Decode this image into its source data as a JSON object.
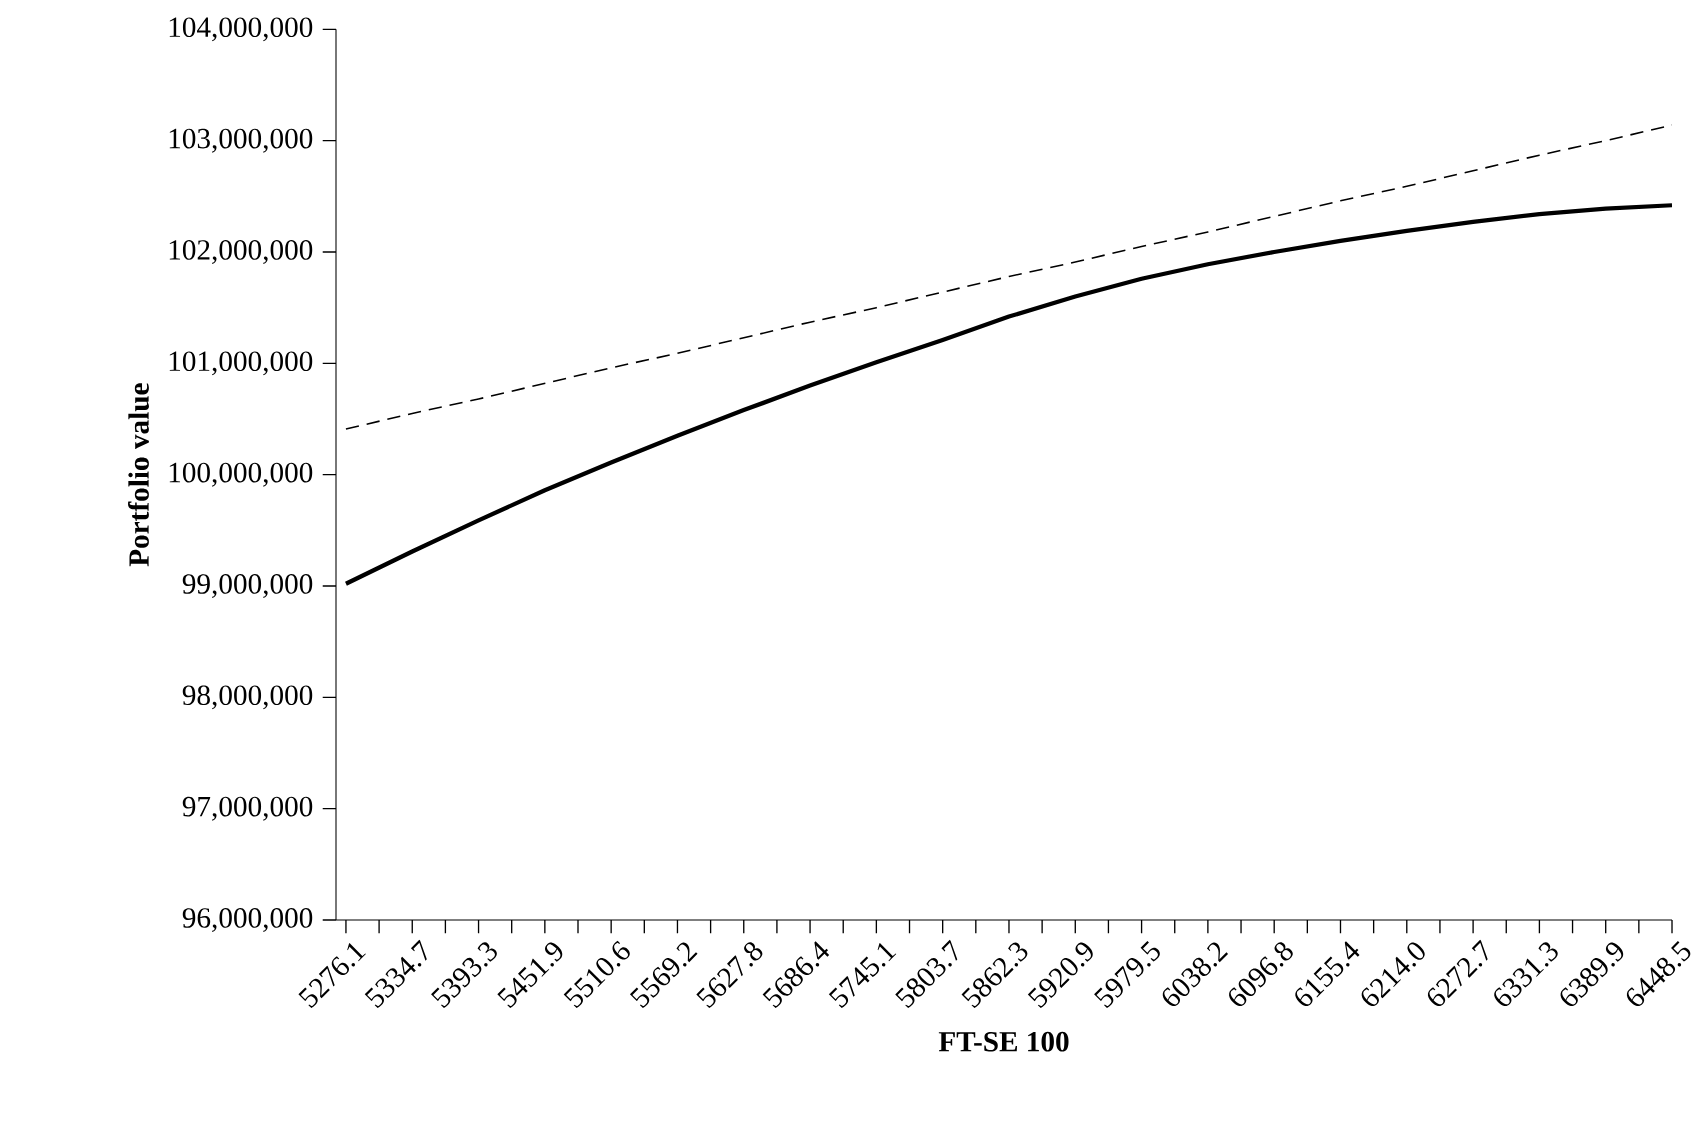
{
  "chart_data": {
    "type": "line",
    "xlabel": "FT-SE 100",
    "ylabel": "Portfolio value",
    "categories": [
      "5276.1",
      "5334.7",
      "5393.3",
      "5451.9",
      "5510.6",
      "5569.2",
      "5627.8",
      "5686.4",
      "5745.1",
      "5803.7",
      "5862.3",
      "5920.9",
      "5979.5",
      "6038.2",
      "6096.8",
      "6155.4",
      "6214.0",
      "6272.7",
      "6331.3",
      "6389.9",
      "6448.5"
    ],
    "series": [
      {
        "color": "#000000",
        "line_style": "solid",
        "values": [
          99020000,
          99310000,
          99590000,
          99860000,
          100110000,
          100350000,
          100580000,
          100800000,
          101010000,
          101210000,
          101420000,
          101600000,
          101760000,
          101890000,
          102000000,
          102100000,
          102190000,
          102270000,
          102340000,
          102390000,
          102420000
        ]
      },
      {
        "color": "#000000",
        "line_style": "dashed",
        "values": [
          100410000,
          100550000,
          100680000,
          100820000,
          100960000,
          101090000,
          101230000,
          101370000,
          101500000,
          101640000,
          101780000,
          101910000,
          102050000,
          102180000,
          102320000,
          102460000,
          102590000,
          102730000,
          102870000,
          103000000,
          103140000
        ]
      }
    ],
    "ylim": [
      96000000,
      104000000
    ],
    "yticks": [
      {
        "value": 96000000,
        "label": "96,000,000"
      },
      {
        "value": 97000000,
        "label": "97,000,000"
      },
      {
        "value": 98000000,
        "label": "98,000,000"
      },
      {
        "value": 99000000,
        "label": "99,000,000"
      },
      {
        "value": 100000000,
        "label": "100,000,000"
      },
      {
        "value": 101000000,
        "label": "101,000,000"
      },
      {
        "value": 102000000,
        "label": "102,000,000"
      },
      {
        "value": 103000000,
        "label": "103,000,000"
      },
      {
        "value": 104000000,
        "label": "104,000,000"
      }
    ],
    "grid": false
  }
}
